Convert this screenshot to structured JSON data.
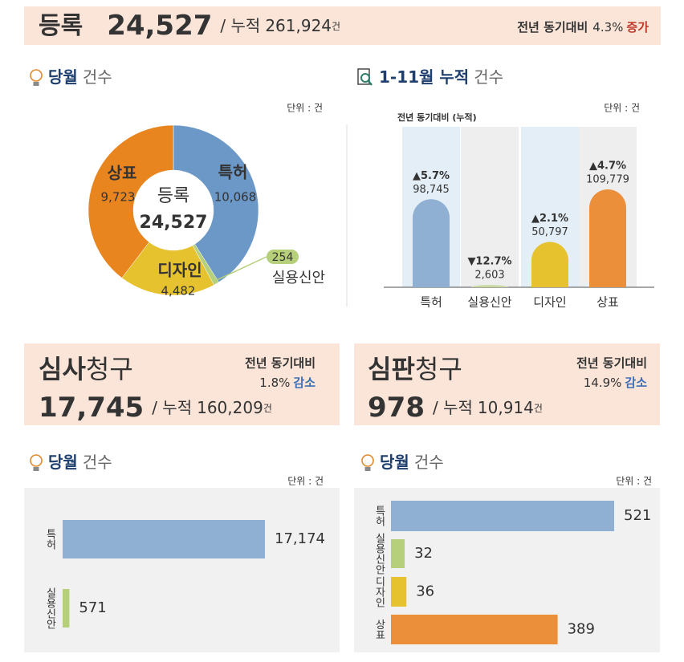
{
  "header": {
    "title": "등록",
    "value": "24,527",
    "cumulative_prefix": "/ 누적",
    "cumulative": "261,924",
    "unit": "건",
    "yoy_label": "전년 동기대비",
    "yoy": "4.3%",
    "yoy_trend": "증가"
  },
  "exam": {
    "title_bold": "심사",
    "title": "청구",
    "value": "17,745",
    "cumulative_prefix": "/ 누적",
    "cumulative": "160,209",
    "unit": "건",
    "yoy_label": "전년 동기대비",
    "yoy": "1.8%",
    "yoy_trend": "감소"
  },
  "trial": {
    "title_bold": "심판",
    "title": "청구",
    "value": "978",
    "cumulative_prefix": "/ 누적",
    "cumulative": "10,914",
    "unit": "건",
    "yoy_label": "전년 동기대비",
    "yoy": "14.9%",
    "yoy_trend": "감소"
  },
  "chart_data": [
    {
      "type": "pie",
      "title_bold": "당월",
      "title": "건수",
      "unit": "단위 : 건",
      "center_label": "등록",
      "center_value": "24,527",
      "categories": [
        "특허",
        "실용신안",
        "디자인",
        "상표"
      ],
      "values": [
        10068,
        254,
        4482,
        9723
      ],
      "value_labels": [
        "10,068",
        "254",
        "4,482",
        "9,723"
      ],
      "colors": [
        "#6b98c7",
        "#b5cf7a",
        "#e6c22e",
        "#e8851f"
      ]
    },
    {
      "type": "bar",
      "title_bold": "1-11월 누적",
      "title": "건수",
      "unit": "단위 : 건",
      "subtitle": "전년 동기대비 (누적)",
      "categories": [
        "특허",
        "실용신안",
        "디자인",
        "상표"
      ],
      "values": [
        98745,
        2603,
        50797,
        109779
      ],
      "value_labels": [
        "98,745",
        "2,603",
        "50,797",
        "109,779"
      ],
      "changes": [
        "▲5.7%",
        "▼12.7%",
        "▲2.1%",
        "▲4.7%"
      ],
      "change_colors": [
        "#c0392b",
        "#3c6fb6",
        "#c0392b",
        "#c0392b"
      ],
      "colors": [
        "#8fb0d3",
        "#c9d9a0",
        "#e6c22e",
        "#eb8f3a"
      ]
    },
    {
      "type": "hbar",
      "title_bold": "당월",
      "title": "건수",
      "unit": "단위 : 건",
      "categories": [
        "특허",
        "실용신안"
      ],
      "values": [
        17174,
        571
      ],
      "value_labels": [
        "17,174",
        "571"
      ],
      "colors": [
        "#8fb0d3",
        "#b5cf7a"
      ]
    },
    {
      "type": "hbar",
      "title_bold": "당월",
      "title": "건수",
      "unit": "단위 : 건",
      "categories": [
        "특허",
        "실용신안",
        "디자인",
        "상표"
      ],
      "values": [
        521,
        32,
        36,
        389
      ],
      "colors": [
        "#8fb0d3",
        "#b5cf7a",
        "#e6c22e",
        "#eb8f3a"
      ]
    }
  ]
}
